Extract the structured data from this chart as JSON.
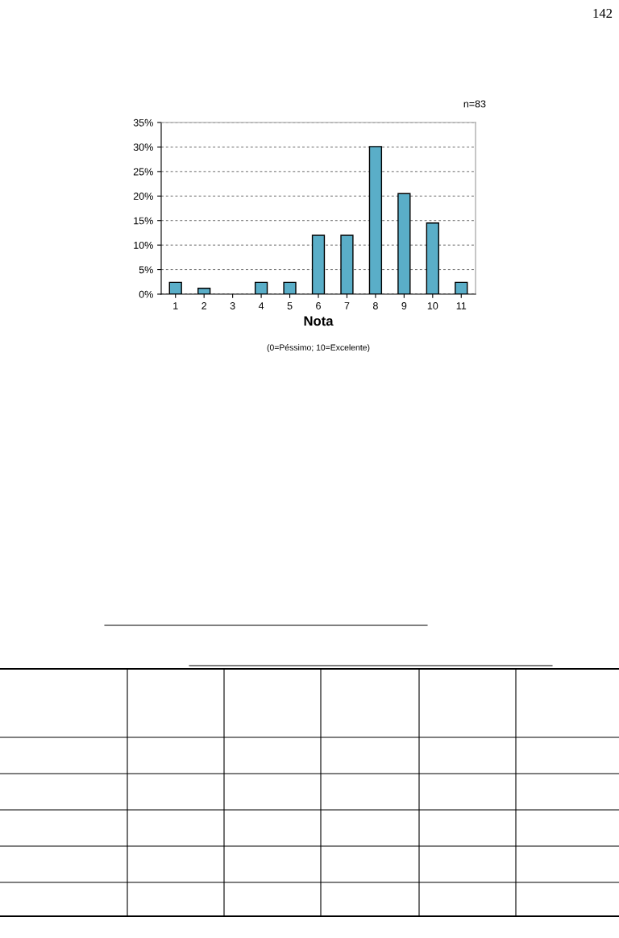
{
  "chart_data": {
    "type": "bar",
    "xlabel": "Nota",
    "categories": [
      "1",
      "2",
      "3",
      "4",
      "5",
      "6",
      "7",
      "8",
      "9",
      "10",
      "11"
    ],
    "values": [
      2.4,
      1.2,
      0,
      2.4,
      2.4,
      12.0,
      12.0,
      30.1,
      20.5,
      14.5,
      2.4
    ],
    "color": "#5aaec8",
    "ylim": [
      0,
      35
    ],
    "yticks": [
      {
        "value": 0,
        "label": "0%"
      },
      {
        "value": 5,
        "label": "5%"
      },
      {
        "value": 10,
        "label": "10%"
      },
      {
        "value": 15,
        "label": "15%"
      },
      {
        "value": 20,
        "label": "20%"
      },
      {
        "value": 25,
        "label": "25%"
      },
      {
        "value": 30,
        "label": "30%"
      },
      {
        "value": 35,
        "label": "35%"
      }
    ],
    "grid": "y",
    "annotations": [
      "(0=Péssimo; 10=Excelente)",
      "n=83",
      "142"
    ]
  }
}
